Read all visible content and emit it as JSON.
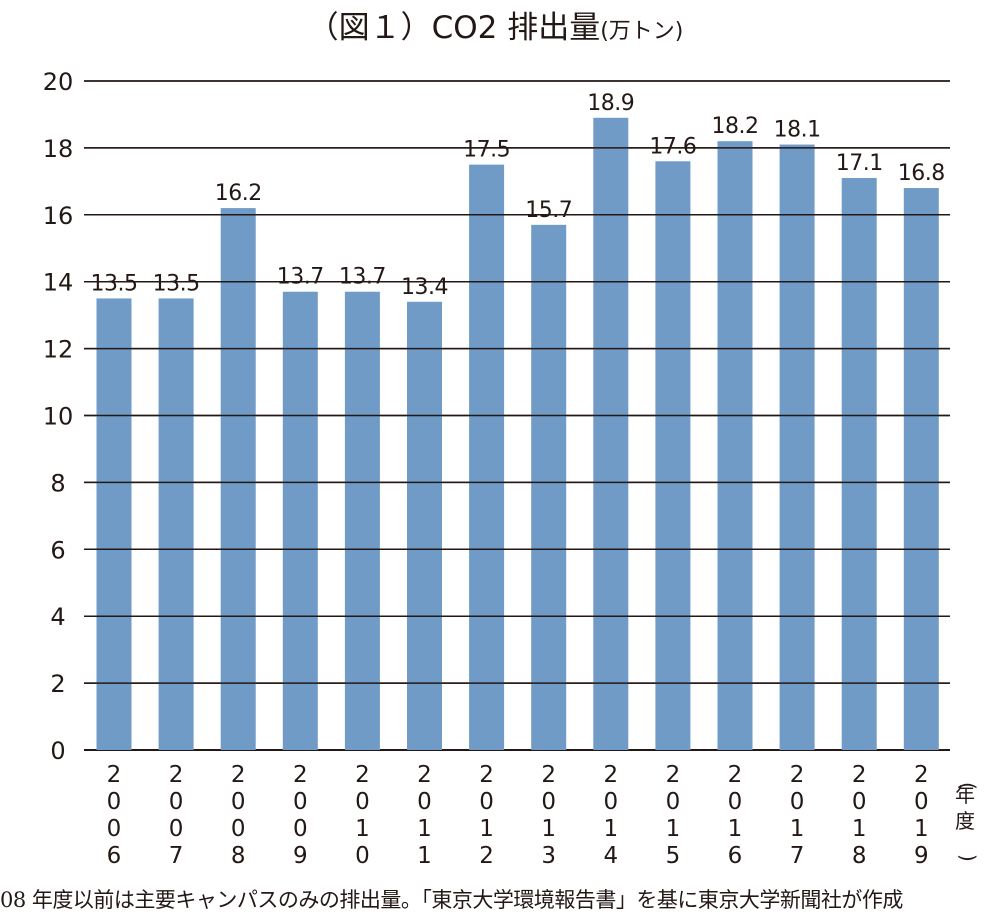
{
  "chart_data": {
    "type": "bar",
    "title": "（図１）CO2 排出量",
    "unit_label": "(万トン)",
    "xlabel": "(年度)",
    "ylabel": "",
    "ylim": [
      0,
      20
    ],
    "yticks": [
      0,
      2,
      4,
      6,
      8,
      10,
      12,
      14,
      16,
      18,
      20
    ],
    "grid": true,
    "bar_color": "#6f9bc6",
    "categories": [
      "2006",
      "2007",
      "2008",
      "2009",
      "2010",
      "2011",
      "2012",
      "2013",
      "2014",
      "2015",
      "2016",
      "2017",
      "2018",
      "2019"
    ],
    "values": [
      13.5,
      13.5,
      16.2,
      13.7,
      13.7,
      13.4,
      17.5,
      15.7,
      18.9,
      17.6,
      18.2,
      18.1,
      17.1,
      16.8
    ],
    "value_labels": [
      "13.5",
      "13.5",
      "16.2",
      "13.7",
      "13.7",
      "13.4",
      "17.5",
      "15.7",
      "18.9",
      "17.6",
      "18.2",
      "18.1",
      "17.1",
      "16.8"
    ]
  },
  "footnote": "08 年度以前は主要キャンパスのみの排出量。「東京大学環境報告書」を基に東京大学新聞社が作成"
}
